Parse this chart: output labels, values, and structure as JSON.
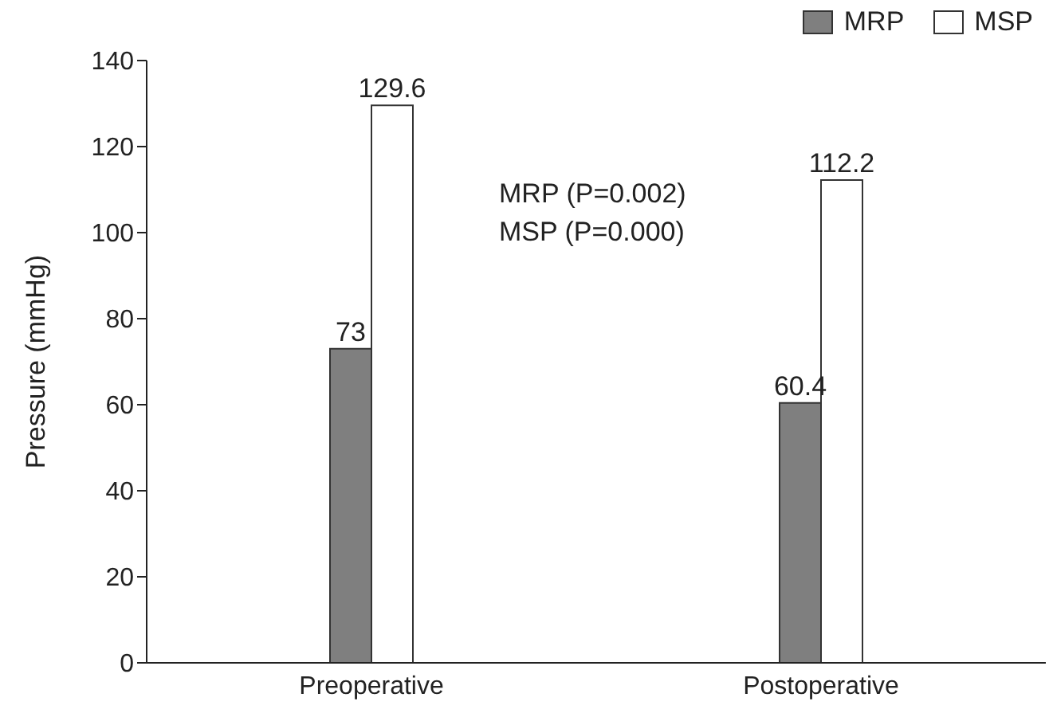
{
  "chart_data": {
    "type": "bar",
    "ylabel": "Pressure (mmHg)",
    "categories": [
      "Preoperative",
      "Postoperative"
    ],
    "series": [
      {
        "name": "MRP",
        "color": "#7f7f7f",
        "values": [
          73,
          60.4
        ]
      },
      {
        "name": "MSP",
        "color": "#ffffff",
        "values": [
          129.6,
          112.2
        ]
      }
    ],
    "ylim": [
      0,
      140
    ],
    "yticks": [
      0,
      20,
      40,
      60,
      80,
      100,
      120,
      140
    ],
    "grid": false,
    "legend": "top right",
    "data_labels": true,
    "annotations": [
      "MRP (P=0.002)",
      "MSP (P=0.000)"
    ]
  }
}
